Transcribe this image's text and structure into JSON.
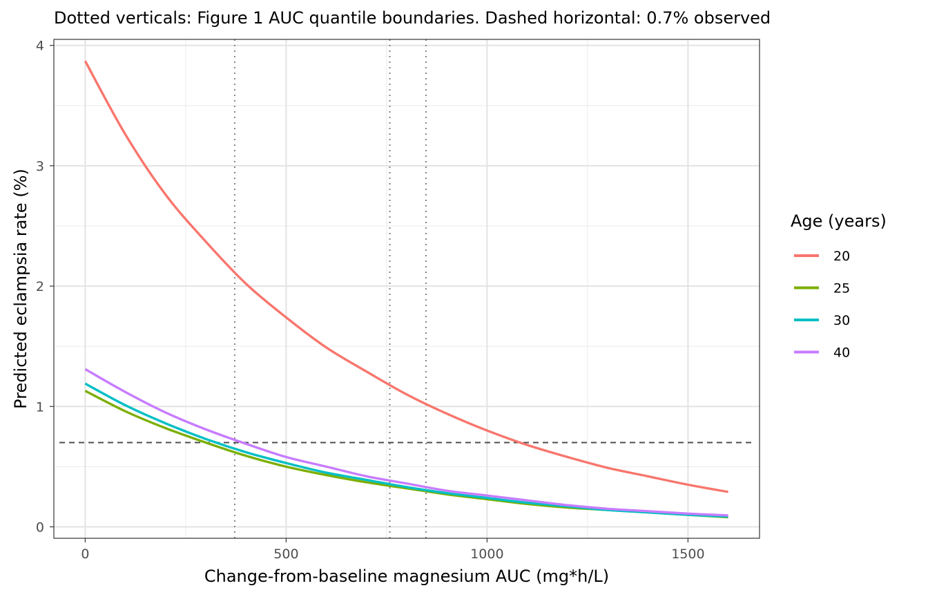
{
  "chart_data": {
    "type": "line",
    "title": "Dotted verticals: Figure 1 AUC quantile boundaries. Dashed horizontal: 0.7% observed",
    "xlabel": "Change-from-baseline magnesium AUC (mg*h/L)",
    "ylabel": "Predicted eclampsia rate (%)",
    "xlim": [
      -78,
      1678
    ],
    "ylim": [
      -0.095,
      4.05
    ],
    "xticks": [
      0,
      500,
      1000,
      1500
    ],
    "xtick_labels": [
      "0",
      "500",
      "1000",
      "1500"
    ],
    "yticks": [
      0,
      1,
      2,
      3,
      4
    ],
    "ytick_labels": [
      "0",
      "1",
      "2",
      "3",
      "4"
    ],
    "grid": true,
    "legend": {
      "title": "Age (years)",
      "placement": "right"
    },
    "vertical_lines": {
      "style": "dotted",
      "x": [
        372,
        758,
        848
      ]
    },
    "horizontal_line": {
      "style": "dashed",
      "y": 0.7
    },
    "x": [
      0,
      100,
      200,
      300,
      400,
      500,
      600,
      700,
      800,
      900,
      1000,
      1100,
      1200,
      1300,
      1400,
      1500,
      1600
    ],
    "series": [
      {
        "name": "20",
        "color": "#F8766D",
        "values": [
          3.87,
          3.26,
          2.76,
          2.37,
          2.02,
          1.74,
          1.49,
          1.29,
          1.1,
          0.94,
          0.8,
          0.68,
          0.58,
          0.49,
          0.42,
          0.35,
          0.29
        ]
      },
      {
        "name": "25",
        "color": "#7CAE00",
        "values": [
          1.13,
          0.96,
          0.82,
          0.7,
          0.59,
          0.5,
          0.43,
          0.37,
          0.32,
          0.27,
          0.23,
          0.19,
          0.16,
          0.14,
          0.12,
          0.1,
          0.08
        ]
      },
      {
        "name": "30",
        "color": "#00BFC4",
        "values": [
          1.19,
          1.01,
          0.86,
          0.73,
          0.62,
          0.53,
          0.45,
          0.39,
          0.33,
          0.28,
          0.24,
          0.2,
          0.17,
          0.14,
          0.12,
          0.1,
          0.085
        ]
      },
      {
        "name": "40",
        "color": "#C77CFF",
        "values": [
          1.31,
          1.12,
          0.95,
          0.81,
          0.69,
          0.58,
          0.5,
          0.42,
          0.36,
          0.3,
          0.26,
          0.22,
          0.18,
          0.15,
          0.13,
          0.11,
          0.095
        ]
      }
    ]
  }
}
